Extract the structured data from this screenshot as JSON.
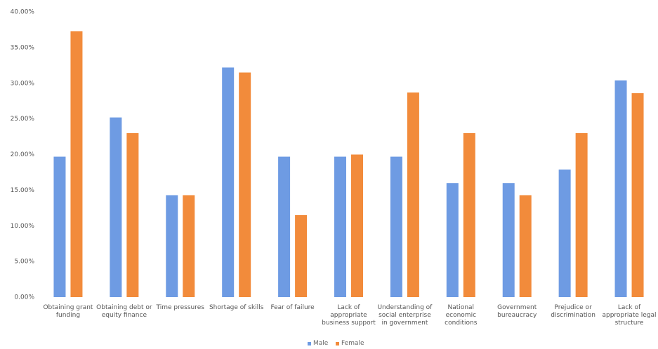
{
  "chart_data": {
    "type": "bar",
    "categories": [
      "Obtaining grant funding",
      "Obtaining debt or equity finance",
      "Time pressures",
      "Shortage of skills",
      "Fear of failure",
      "Lack of appropriate business support",
      "Understanding of social enterprise in government",
      "National economic conditions",
      "Government bureaucracy",
      "Prejudice or discrimination",
      "Lack of appropriate legal structure"
    ],
    "series": [
      {
        "name": "Male",
        "color": "#6e9be3",
        "values": [
          19.7,
          25.2,
          14.3,
          32.2,
          19.7,
          19.7,
          19.7,
          16.0,
          16.0,
          17.9,
          30.4
        ]
      },
      {
        "name": "Female",
        "color": "#f28b3b",
        "values": [
          37.3,
          23.0,
          14.3,
          31.5,
          11.5,
          20.0,
          28.7,
          23.0,
          14.3,
          23.0,
          28.6
        ]
      }
    ],
    "ylim": [
      0,
      40
    ],
    "yticks": [
      {
        "value": 0,
        "label": "0.00%"
      },
      {
        "value": 5,
        "label": "5.00%"
      },
      {
        "value": 10,
        "label": "10.00%"
      },
      {
        "value": 15,
        "label": "15.00%"
      },
      {
        "value": 20,
        "label": "20.00%"
      },
      {
        "value": 25,
        "label": "25.00%"
      },
      {
        "value": 30,
        "label": "30.00%"
      },
      {
        "value": 35,
        "label": "35.00%"
      },
      {
        "value": 40,
        "label": "40.00%"
      }
    ],
    "grid": false,
    "legend": "bottom"
  }
}
